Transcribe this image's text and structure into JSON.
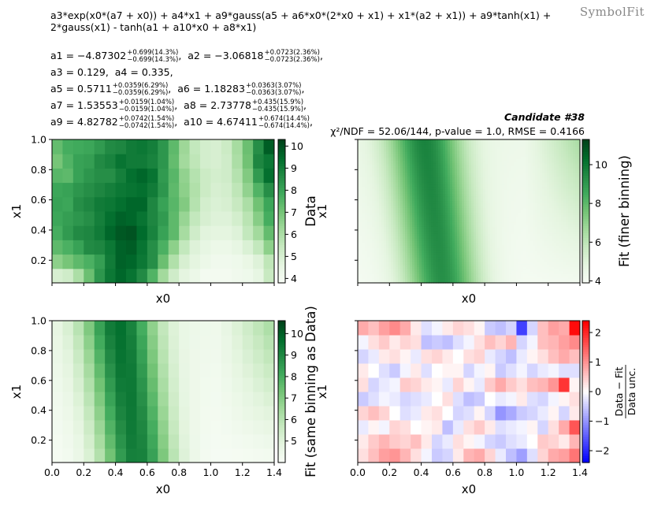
{
  "header": {
    "watermark": "SymbolFit",
    "formula_line1": "a3*exp(x0*(a7 + x0)) + a4*x1 + a9*gauss(a5 + a6*x0*(2*x0 + x1) + x1*(a2 + x1)) + a9*tanh(x1) +",
    "formula_line2": "2*gauss(x1) - tanh(a1 + a10*x0 + a8*x1)",
    "candidate": "Candidate #38",
    "stats": "χ²/NDF = 52.06/144, p-value = 1.0, RMSE = 0.4166"
  },
  "params_rows": [
    [
      {
        "name": "a1 = ",
        "value": "−4.87302",
        "up": "+0.699(14.3%)",
        "down": "−0.699(14.3%)",
        "sep": ",  "
      },
      {
        "name": "a2 = ",
        "value": "−3.06818",
        "up": "+0.0723(2.36%)",
        "down": "−0.0723(2.36%)",
        "sep": ","
      }
    ],
    [
      {
        "name": "a3 = ",
        "value": "0.129",
        "up": "",
        "down": "",
        "sep": ",  "
      },
      {
        "name": "a4 = ",
        "value": "0.335",
        "up": "",
        "down": "",
        "sep": ","
      }
    ],
    [
      {
        "name": "a5 = ",
        "value": "0.5711",
        "up": "+0.0359(6.29%)",
        "down": "−0.0359(6.29%)",
        "sep": ",  "
      },
      {
        "name": "a6 = ",
        "value": "1.18283",
        "up": "+0.0363(3.07%)",
        "down": "−0.0363(3.07%)",
        "sep": ","
      }
    ],
    [
      {
        "name": "a7 = ",
        "value": "1.53553",
        "up": "+0.0159(1.04%)",
        "down": "−0.0159(1.04%)",
        "sep": ",  "
      },
      {
        "name": "a8 = ",
        "value": "2.73778",
        "up": "+0.435(15.9%)",
        "down": "−0.435(15.9%)",
        "sep": ","
      }
    ],
    [
      {
        "name": "a9 = ",
        "value": "4.82782",
        "up": "+0.0742(1.54%)",
        "down": "−0.0742(1.54%)",
        "sep": ",  "
      },
      {
        "name": "a10 = ",
        "value": "4.67411",
        "up": "+0.674(14.4%)",
        "down": "−0.674(14.4%)",
        "sep": ","
      }
    ]
  ],
  "chart_data": [
    {
      "id": "data",
      "type": "heatmap",
      "title": "",
      "xlabel": "x0",
      "ylabel": "x1",
      "colorbar_label": "Data",
      "colormap": "Greens",
      "x_range": [
        0.0,
        1.4
      ],
      "y_range": [
        0.05,
        1.0
      ],
      "clim": [
        3.8,
        10.3
      ],
      "colorbar_ticks": [
        "4",
        "5",
        "6",
        "7",
        "8",
        "9",
        "10"
      ],
      "y_ticks": [
        "0.2",
        "0.4",
        "0.6",
        "0.8",
        "1.0"
      ],
      "x_ticks": [],
      "grid": [
        [
          5.0,
          5.2,
          6.0,
          7.2,
          8.4,
          9.2,
          9.6,
          9.3,
          8.7,
          7.6,
          6.2,
          5.2,
          4.6,
          4.3,
          4.0,
          4.0,
          4.0,
          4.1,
          4.2,
          4.5,
          5.4
        ],
        [
          6.6,
          7.0,
          7.4,
          7.7,
          8.2,
          9.1,
          9.7,
          9.6,
          9.2,
          8.6,
          7.2,
          5.9,
          5.0,
          4.6,
          4.3,
          4.1,
          4.1,
          4.2,
          4.4,
          4.8,
          5.6
        ],
        [
          7.4,
          7.7,
          8.1,
          8.7,
          8.8,
          9.2,
          9.7,
          9.8,
          9.3,
          8.6,
          7.7,
          6.6,
          5.5,
          4.8,
          4.5,
          4.3,
          4.3,
          4.5,
          4.9,
          5.5,
          6.6
        ],
        [
          7.8,
          8.3,
          8.7,
          8.8,
          9.1,
          9.6,
          9.9,
          10.0,
          9.5,
          8.9,
          8.1,
          7.4,
          6.1,
          5.2,
          4.7,
          4.6,
          4.6,
          4.8,
          5.5,
          6.2,
          7.3
        ],
        [
          8.0,
          8.2,
          8.4,
          8.6,
          9.0,
          9.4,
          9.7,
          9.6,
          9.3,
          8.8,
          8.3,
          7.4,
          6.4,
          5.5,
          5.0,
          4.8,
          4.8,
          5.1,
          5.7,
          6.7,
          7.8
        ],
        [
          8.1,
          8.0,
          8.6,
          8.8,
          9.1,
          9.2,
          9.4,
          9.6,
          9.6,
          8.8,
          8.1,
          7.5,
          6.8,
          5.8,
          5.1,
          4.9,
          5.0,
          5.4,
          6.0,
          7.1,
          8.0
        ],
        [
          8.0,
          8.1,
          8.4,
          8.6,
          8.8,
          9.0,
          9.2,
          9.3,
          9.4,
          9.1,
          8.4,
          7.4,
          6.6,
          5.9,
          5.3,
          5.0,
          5.1,
          5.6,
          6.5,
          7.6,
          8.6
        ],
        [
          7.5,
          7.4,
          8.1,
          8.4,
          8.6,
          8.6,
          9.0,
          9.4,
          9.6,
          9.3,
          8.3,
          7.5,
          6.5,
          5.8,
          5.3,
          5.1,
          5.2,
          5.8,
          6.8,
          8.3,
          9.4
        ],
        [
          7.0,
          7.6,
          8.1,
          8.2,
          8.7,
          8.9,
          9.3,
          9.1,
          9.1,
          8.9,
          8.4,
          7.3,
          6.2,
          5.6,
          5.1,
          5.0,
          5.2,
          6.0,
          7.1,
          8.8,
          9.2
        ],
        [
          7.3,
          7.8,
          7.9,
          8.0,
          8.3,
          8.7,
          8.8,
          9.1,
          9.2,
          9.0,
          8.4,
          7.4,
          6.3,
          5.5,
          5.1,
          5.0,
          5.3,
          6.1,
          7.2,
          8.6,
          9.8
        ]
      ]
    },
    {
      "id": "fit_fine",
      "type": "heatmap",
      "title": "",
      "xlabel": "x0",
      "ylabel": "x1",
      "colorbar_label": "Fit (finer binning)",
      "colormap": "Greens",
      "x_range": [
        0.0,
        1.4
      ],
      "y_range": [
        0.05,
        1.0
      ],
      "clim": [
        3.9,
        11.3
      ],
      "colorbar_ticks": [
        "4",
        "6",
        "8",
        "10"
      ],
      "y_ticks": [],
      "x_ticks": [],
      "note": "continuous surface evaluated from the fitted function"
    },
    {
      "id": "fit_same",
      "type": "heatmap",
      "title": "",
      "xlabel": "x0",
      "ylabel": "x1",
      "colorbar_label": "Fit (same binning as Data)",
      "colormap": "Greens",
      "x_range": [
        0.0,
        1.4
      ],
      "y_range": [
        0.05,
        1.0
      ],
      "clim": [
        4.0,
        10.6
      ],
      "colorbar_ticks": [
        "5",
        "6",
        "7",
        "8",
        "9",
        "10"
      ],
      "y_ticks": [
        "0.2",
        "0.4",
        "0.6",
        "0.8",
        "1.0"
      ],
      "x_ticks": [
        "0.0",
        "0.2",
        "0.4",
        "0.6",
        "0.8",
        "1.0",
        "1.2",
        "1.4"
      ],
      "note": "fitted function evaluated on the same 21x10 binning as Data"
    },
    {
      "id": "pull",
      "type": "heatmap",
      "title": "",
      "xlabel": "x0",
      "ylabel": "x1",
      "colorbar_label": "Data − Fit / Data unc.",
      "colormap": "bwr",
      "x_range": [
        0.0,
        1.4
      ],
      "y_range": [
        0.05,
        1.0
      ],
      "clim": [
        -2.4,
        2.4
      ],
      "colorbar_ticks": [
        "−2",
        "−1",
        "0",
        "1",
        "2"
      ],
      "y_ticks": [],
      "x_ticks": [
        "0.0",
        "0.2",
        "0.4",
        "0.6",
        "0.8",
        "1.0",
        "1.2",
        "1.4"
      ],
      "grid": [
        [
          0.3,
          0.6,
          0.9,
          1.0,
          0.7,
          0.3,
          -0.1,
          -0.5,
          -0.4,
          0.2,
          0.7,
          0.8,
          0.4,
          -0.2,
          -0.6,
          -0.9,
          -0.3,
          0.4,
          0.8,
          0.9,
          1.3
        ],
        [
          0.2,
          0.5,
          0.7,
          0.5,
          0.4,
          0.6,
          0.2,
          -0.4,
          -0.2,
          0.3,
          0.1,
          -0.1,
          -0.4,
          -0.5,
          -0.3,
          -0.2,
          0.0,
          0.5,
          0.4,
          0.2,
          0.7
        ],
        [
          -0.2,
          0.1,
          -0.1,
          0.4,
          0.3,
          0.0,
          0.1,
          0.2,
          -0.6,
          -0.2,
          0.3,
          0.5,
          0.2,
          -0.3,
          -0.2,
          -0.1,
          0.1,
          -0.4,
          0.3,
          0.8,
          1.6
        ],
        [
          0.4,
          0.6,
          0.4,
          0.0,
          -0.3,
          -0.2,
          0.2,
          0.3,
          0.0,
          -0.4,
          -0.3,
          0.1,
          -0.4,
          -1.0,
          -0.8,
          -0.5,
          -0.4,
          -0.2,
          0.1,
          -0.4,
          0.2
        ],
        [
          -0.5,
          -0.3,
          -0.1,
          -0.2,
          -0.4,
          -0.3,
          -0.2,
          0.0,
          0.3,
          -0.3,
          -0.6,
          -0.5,
          0.0,
          -0.2,
          -0.1,
          0.2,
          -0.3,
          -0.4,
          -0.1,
          0.1,
          0.3
        ],
        [
          0.3,
          -0.4,
          -0.2,
          -0.1,
          0.5,
          0.4,
          0.2,
          0.1,
          -0.2,
          0.4,
          0.1,
          -0.2,
          0.5,
          0.8,
          0.5,
          0.3,
          0.6,
          0.7,
          1.0,
          1.9,
          0.1
        ],
        [
          0.2,
          0.0,
          -0.3,
          -0.5,
          -0.1,
          0.2,
          -0.3,
          0.0,
          0.1,
          0.1,
          -0.4,
          -0.1,
          0.1,
          -0.5,
          -0.3,
          -0.1,
          -0.4,
          -0.2,
          -0.1,
          -0.3,
          -0.3
        ],
        [
          -0.4,
          -0.2,
          0.2,
          0.3,
          0.1,
          -0.2,
          0.3,
          0.4,
          0.2,
          0.0,
          0.3,
          0.4,
          -0.2,
          -0.4,
          -0.6,
          -0.2,
          0.1,
          0.3,
          0.6,
          0.8,
          0.6
        ],
        [
          -0.1,
          0.3,
          0.5,
          0.2,
          0.4,
          0.3,
          -0.6,
          -0.5,
          -0.6,
          -0.3,
          -0.1,
          0.3,
          0.6,
          0.4,
          0.7,
          -0.4,
          -0.1,
          0.6,
          0.7,
          0.9,
          1.1
        ],
        [
          0.8,
          0.6,
          0.9,
          1.1,
          0.8,
          0.2,
          -0.3,
          -0.1,
          0.2,
          0.4,
          0.3,
          0.1,
          -0.5,
          -0.6,
          -0.4,
          -1.8,
          -0.4,
          0.6,
          0.9,
          0.8,
          2.3
        ]
      ]
    }
  ]
}
